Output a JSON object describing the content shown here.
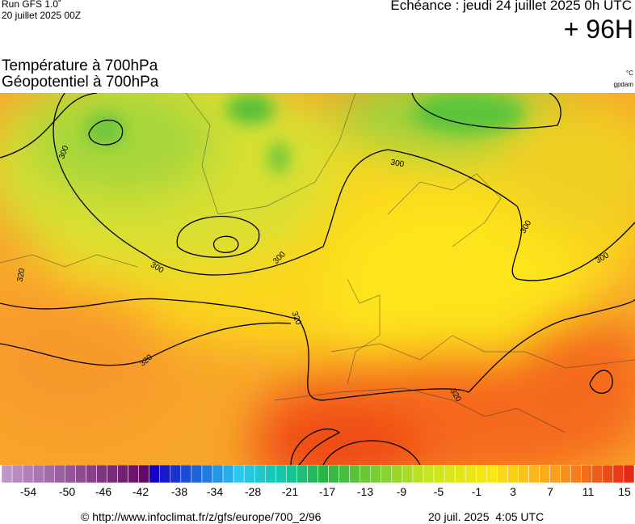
{
  "header": {
    "run": "Run GFS 1.0˚",
    "run_date": "20 juillet 2025 00Z",
    "echeance": "Echéance : jeudi 24 juillet 2025 0h UTC",
    "lead": "+ 96H"
  },
  "titles": {
    "temperature": "Température à 700hPa",
    "geopotential": "Géopotentiel à 700hPa",
    "unit_temp": "°C",
    "unit_geo": "gpdam"
  },
  "map": {
    "contour_labels": [
      "300",
      "300",
      "300",
      "300",
      "300",
      "300",
      "320",
      "320",
      "320",
      "320"
    ]
  },
  "colorbar": {
    "labels": [
      -54,
      -50,
      -46,
      -42,
      -38,
      -34,
      -28,
      -21,
      -17,
      -13,
      -9,
      -5,
      -1,
      3,
      7,
      11,
      15
    ]
  },
  "footer": {
    "url": "© http://www.infoclimat.fr/z/gfs/europe/700_2/96",
    "timestamp": "20 juil. 2025  4:05 UTC"
  }
}
